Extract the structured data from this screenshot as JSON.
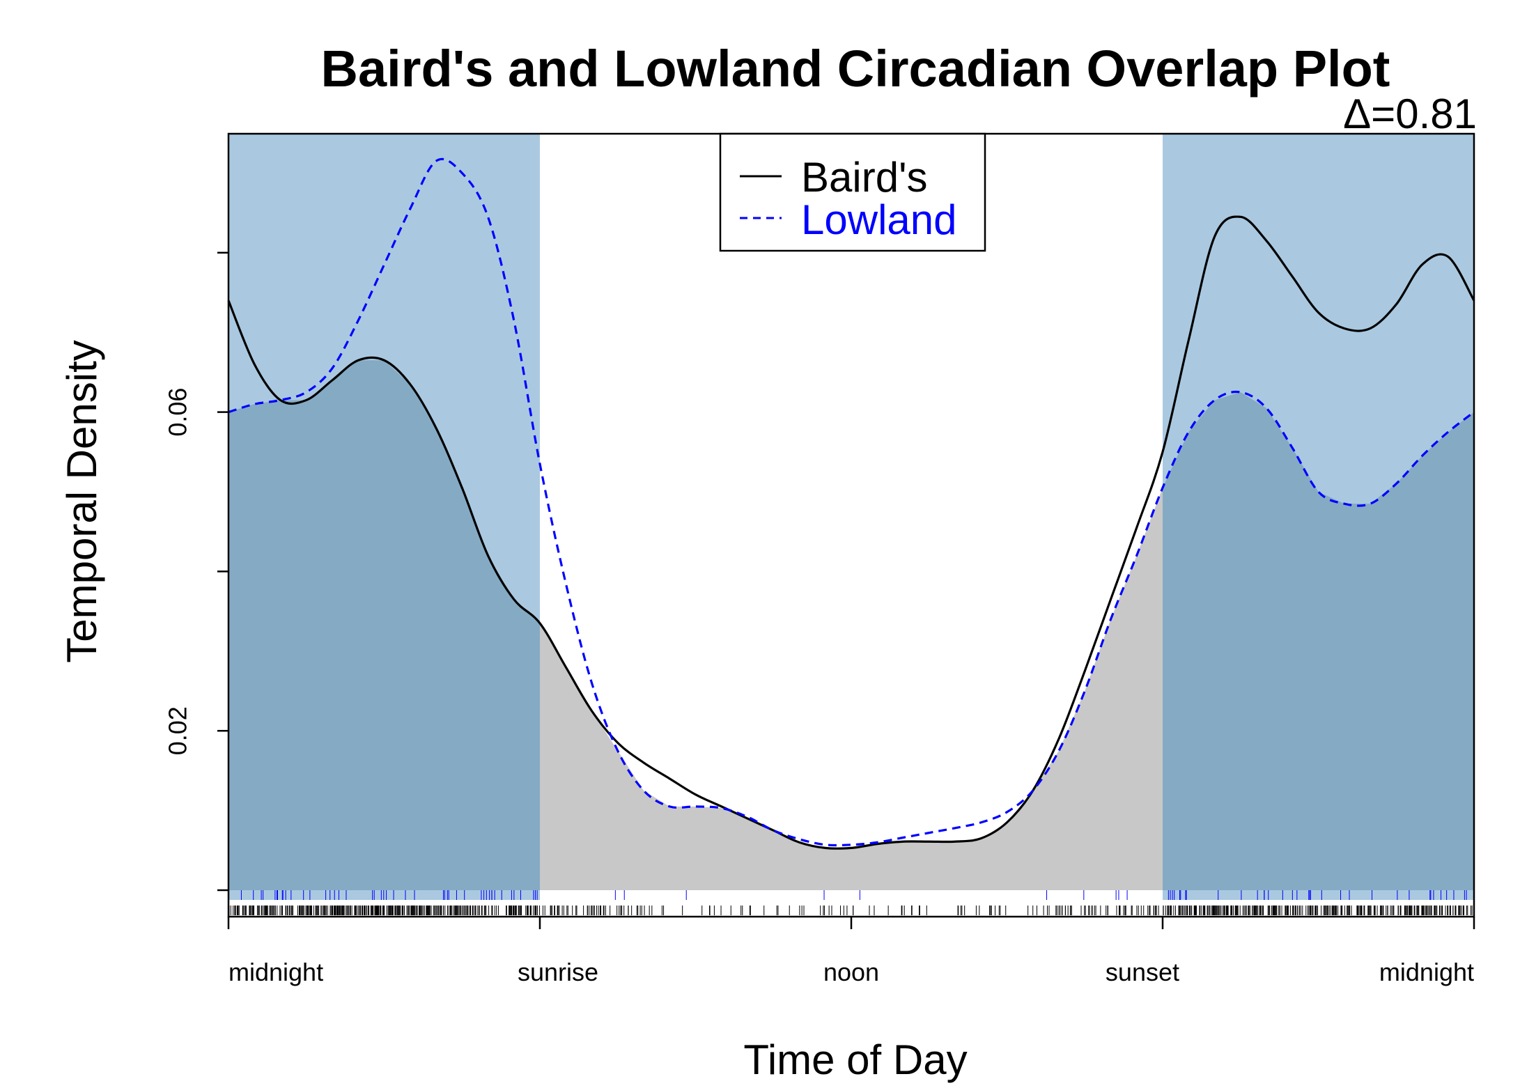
{
  "chart_data": {
    "type": "area",
    "title": "Baird's and Lowland Circadian Overlap Plot",
    "annotation": "Δ=0.81",
    "xlabel": "Time of Day",
    "ylabel": "Temporal Density",
    "xlim": [
      0,
      24
    ],
    "ylim": [
      0,
      0.092
    ],
    "y_ticks": [
      0.0,
      0.02,
      0.04,
      0.06,
      0.08
    ],
    "y_tick_labels": [
      "",
      "0.02",
      "",
      "0.06",
      ""
    ],
    "x_ticks": [
      0,
      6,
      12,
      18,
      24
    ],
    "x_tick_labels": [
      "midnight",
      "sunrise",
      "noon",
      "sunset",
      "midnight"
    ],
    "night_shading": [
      [
        0,
        6
      ],
      [
        18,
        24
      ]
    ],
    "grid": false,
    "legend_position": "top-center",
    "overlap_fill_color": "#c8c8c8",
    "night_color": "#9bc0da",
    "night_overlap_color": "#85aac4",
    "series": [
      {
        "name": "Baird's",
        "color": "#000000",
        "line_style": "solid",
        "x": [
          0,
          0.5,
          1,
          1.5,
          2,
          2.5,
          3,
          3.5,
          4,
          4.5,
          5,
          5.5,
          6,
          6.5,
          7,
          7.5,
          8,
          8.5,
          9,
          9.5,
          10,
          10.5,
          11,
          11.5,
          12,
          12.5,
          13,
          13.5,
          14,
          14.5,
          15,
          15.5,
          16,
          16.5,
          17,
          17.5,
          18,
          18.5,
          19,
          19.5,
          20,
          20.5,
          21,
          21.5,
          22,
          22.5,
          23,
          23.5,
          24
        ],
        "y": [
          0.074,
          0.066,
          0.0615,
          0.0615,
          0.064,
          0.0665,
          0.0665,
          0.0635,
          0.058,
          0.0505,
          0.042,
          0.0365,
          0.0335,
          0.028,
          0.0225,
          0.0185,
          0.016,
          0.014,
          0.012,
          0.0105,
          0.009,
          0.0075,
          0.006,
          0.0053,
          0.0053,
          0.0058,
          0.0061,
          0.0061,
          0.0061,
          0.0065,
          0.0085,
          0.0125,
          0.019,
          0.0275,
          0.0365,
          0.0455,
          0.055,
          0.069,
          0.082,
          0.0845,
          0.0815,
          0.077,
          0.0725,
          0.0705,
          0.0705,
          0.0735,
          0.0785,
          0.0795,
          0.074
        ]
      },
      {
        "name": "Lowland",
        "color": "#0000ff",
        "line_style": "dashed",
        "x": [
          0,
          0.5,
          1,
          1.5,
          2,
          2.5,
          3,
          3.5,
          4,
          4.5,
          5,
          5.5,
          6,
          6.5,
          7,
          7.5,
          8,
          8.5,
          9,
          9.5,
          10,
          10.5,
          11,
          11.5,
          12,
          12.5,
          13,
          13.5,
          14,
          14.5,
          15,
          15.5,
          16,
          16.5,
          17,
          17.5,
          18,
          18.5,
          19,
          19.5,
          20,
          20.5,
          21,
          21.5,
          22,
          22.5,
          23,
          23.5,
          24
        ],
        "y": [
          0.06,
          0.061,
          0.0615,
          0.0625,
          0.0655,
          0.0715,
          0.0785,
          0.0855,
          0.0915,
          0.09,
          0.0845,
          0.0715,
          0.0535,
          0.0385,
          0.026,
          0.0175,
          0.0125,
          0.0105,
          0.0105,
          0.0103,
          0.0092,
          0.0075,
          0.0064,
          0.0057,
          0.0057,
          0.006,
          0.0066,
          0.0072,
          0.0078,
          0.0085,
          0.0098,
          0.0125,
          0.0175,
          0.025,
          0.034,
          0.042,
          0.0505,
          0.0575,
          0.0615,
          0.0625,
          0.0605,
          0.0555,
          0.05,
          0.0485,
          0.0485,
          0.051,
          0.0545,
          0.0575,
          0.06
        ]
      }
    ],
    "rug_baird_density": "dense",
    "rug_lowland_density": "sparse"
  }
}
